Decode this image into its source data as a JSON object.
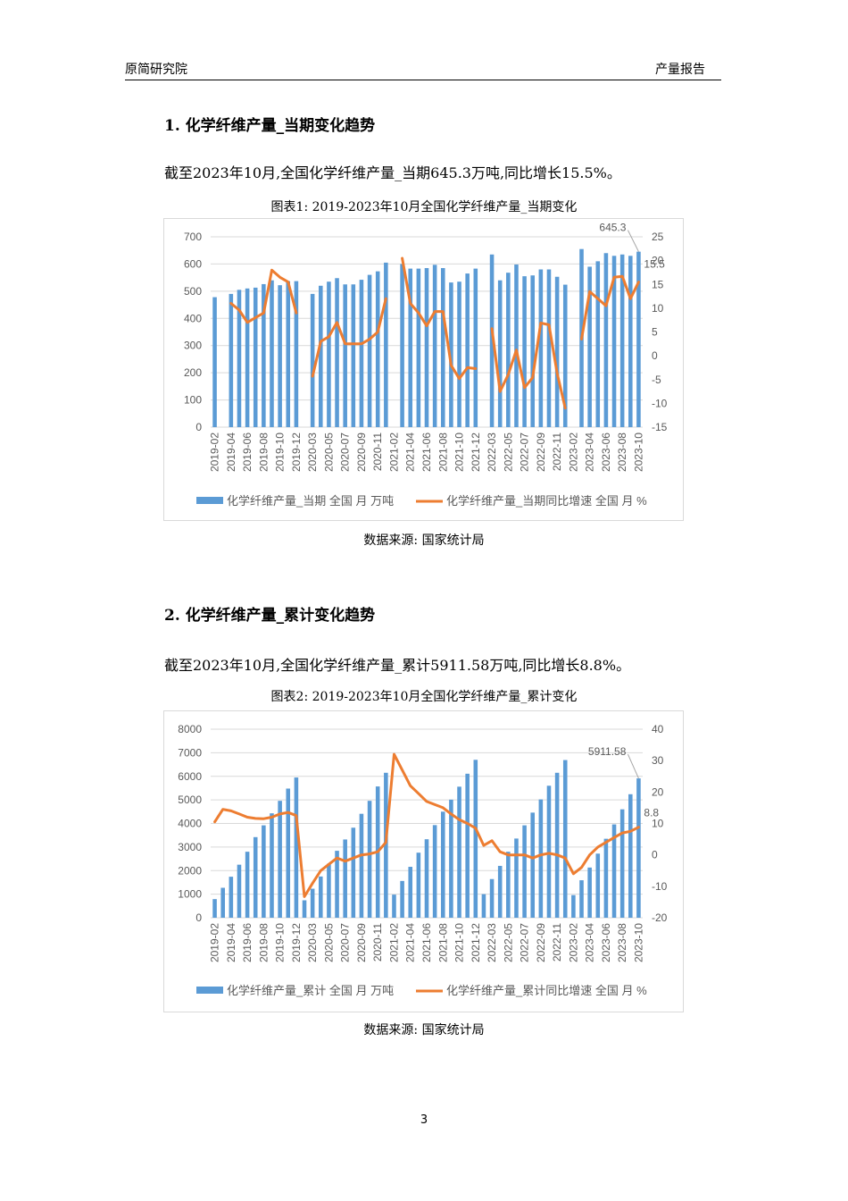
{
  "header": {
    "org": "原简研究院",
    "doc_type": "产量报告"
  },
  "section1": {
    "title": "1.  化学纤维产量_当期变化趋势",
    "summary": "截至2023年10月,全国化学纤维产量_当期645.3万吨,同比增长15.5%。",
    "caption": "图表1: 2019-2023年10月全国化学纤维产量_当期变化",
    "source": "数据来源: 国家统计局"
  },
  "section2": {
    "title": "2.  化学纤维产量_累计变化趋势",
    "summary": "截至2023年10月,全国化学纤维产量_累计5911.58万吨,同比增长8.8%。",
    "caption": "图表2: 2019-2023年10月全国化学纤维产量_累计变化",
    "source": "数据来源: 国家统计局"
  },
  "page_number": "3",
  "colors": {
    "bar": "#5b9bd5",
    "line": "#ed7d31"
  },
  "chart_data": [
    {
      "type": "bar",
      "categories": [
        "2019-02",
        "2019-03",
        "2019-04",
        "2019-05",
        "2019-06",
        "2019-07",
        "2019-08",
        "2019-09",
        "2019-10",
        "2019-11",
        "2019-12",
        "2020-02",
        "2020-03",
        "2020-04",
        "2020-05",
        "2020-06",
        "2020-07",
        "2020-08",
        "2020-09",
        "2020-10",
        "2020-11",
        "2020-12",
        "2021-02",
        "2021-03",
        "2021-04",
        "2021-05",
        "2021-06",
        "2021-07",
        "2021-08",
        "2021-09",
        "2021-10",
        "2021-11",
        "2021-12",
        "2022-02",
        "2022-03",
        "2022-04",
        "2022-05",
        "2022-06",
        "2022-07",
        "2022-08",
        "2022-09",
        "2022-10",
        "2022-11",
        "2022-12",
        "2023-02",
        "2023-03",
        "2023-04",
        "2023-05",
        "2023-06",
        "2023-07",
        "2023-08",
        "2023-09",
        "2023-10"
      ],
      "tick_labels": [
        "2019-02",
        "2019-04",
        "2019-06",
        "2019-08",
        "2019-10",
        "2019-12",
        "2020-03",
        "2020-05",
        "2020-07",
        "2020-09",
        "2020-11",
        "2021-02",
        "2021-04",
        "2021-06",
        "2021-08",
        "2021-10",
        "2021-12",
        "2022-03",
        "2022-05",
        "2022-07",
        "2022-09",
        "2022-11",
        "2023-02",
        "2023-04",
        "2023-06",
        "2023-08",
        "2023-10"
      ],
      "series": [
        {
          "name": "化学纤维产量_当期 全国 月 万吨",
          "type": "bar",
          "axis": "left",
          "values": [
            478,
            null,
            490,
            505,
            510,
            513,
            526,
            540,
            522,
            537,
            537,
            null,
            490,
            520,
            535,
            548,
            525,
            525,
            542,
            560,
            573,
            605,
            null,
            600,
            583,
            583,
            585,
            597,
            585,
            532,
            535,
            565,
            583,
            null,
            635,
            540,
            568,
            598,
            555,
            558,
            580,
            580,
            553,
            524,
            null,
            655,
            590,
            610,
            640,
            630,
            635,
            630,
            645.3
          ]
        },
        {
          "name": "化学纤维产量_当期同比增速 全国 月 %",
          "type": "line",
          "axis": "right",
          "values": [
            20,
            null,
            11,
            9.6,
            7,
            8,
            9,
            18,
            16.5,
            15.5,
            9,
            null,
            -4.3,
            3,
            4,
            7,
            2.5,
            2.5,
            2.5,
            3.5,
            5,
            12,
            null,
            20.5,
            11,
            9,
            6.3,
            9.3,
            9.3,
            -2,
            -4.8,
            -2.5,
            -2.7,
            null,
            5.7,
            -7.5,
            -4,
            1.2,
            -6.7,
            -4.6,
            6.9,
            6.5,
            -3.6,
            -11,
            null,
            3.5,
            13.5,
            12,
            10.5,
            16.5,
            16.7,
            12,
            15.5
          ]
        }
      ],
      "ylim_left": [
        0,
        700
      ],
      "yticks_left": [
        0,
        100,
        200,
        300,
        400,
        500,
        600,
        700
      ],
      "ylim_right": [
        -15,
        25
      ],
      "yticks_right": [
        -15,
        -10,
        -5,
        0,
        5,
        10,
        15,
        20,
        25
      ],
      "annotations": [
        "645.3",
        "15.5"
      ],
      "legend_position": "bottom",
      "grid": true
    },
    {
      "type": "bar",
      "categories": [
        "2019-02",
        "2019-03",
        "2019-04",
        "2019-05",
        "2019-06",
        "2019-07",
        "2019-08",
        "2019-09",
        "2019-10",
        "2019-11",
        "2019-12",
        "2020-02",
        "2020-03",
        "2020-04",
        "2020-05",
        "2020-06",
        "2020-07",
        "2020-08",
        "2020-09",
        "2020-10",
        "2020-11",
        "2020-12",
        "2021-02",
        "2021-03",
        "2021-04",
        "2021-05",
        "2021-06",
        "2021-07",
        "2021-08",
        "2021-09",
        "2021-10",
        "2021-11",
        "2021-12",
        "2022-02",
        "2022-03",
        "2022-04",
        "2022-05",
        "2022-06",
        "2022-07",
        "2022-08",
        "2022-09",
        "2022-10",
        "2022-11",
        "2022-12",
        "2023-02",
        "2023-03",
        "2023-04",
        "2023-05",
        "2023-06",
        "2023-07",
        "2023-08",
        "2023-09",
        "2023-10"
      ],
      "tick_labels": [
        "2019-02",
        "2019-04",
        "2019-06",
        "2019-08",
        "2019-10",
        "2019-12",
        "2020-03",
        "2020-05",
        "2020-07",
        "2020-09",
        "2020-11",
        "2021-02",
        "2021-04",
        "2021-06",
        "2021-08",
        "2021-10",
        "2021-12",
        "2022-03",
        "2022-05",
        "2022-07",
        "2022-09",
        "2022-11",
        "2023-02",
        "2023-04",
        "2023-06",
        "2023-08",
        "2023-10"
      ],
      "series": [
        {
          "name": "化学纤维产量_累计 全国 月 万吨",
          "type": "bar",
          "axis": "left",
          "values": [
            790,
            1270,
            1740,
            2250,
            2800,
            3420,
            3920,
            4430,
            4960,
            5480,
            5950,
            740,
            1230,
            1750,
            2290,
            2840,
            3320,
            3820,
            4410,
            4960,
            5570,
            6150,
            980,
            1560,
            2160,
            2760,
            3330,
            3930,
            4500,
            5010,
            5560,
            6110,
            6700,
            1000,
            1640,
            2200,
            2800,
            3360,
            3920,
            4460,
            5020,
            5600,
            6150,
            6690,
            960,
            1590,
            2130,
            2720,
            3350,
            3960,
            4600,
            5240,
            5911.58
          ]
        },
        {
          "name": "化学纤维产量_累计同比增速 全国 月 %",
          "type": "line",
          "axis": "right",
          "values": [
            10.5,
            14.5,
            14,
            13,
            12,
            11.6,
            11.5,
            12,
            13,
            13.5,
            12.5,
            -13.3,
            -9,
            -5,
            -3,
            -1,
            -2,
            -1,
            0,
            0.3,
            1,
            4,
            32,
            27,
            22,
            19.5,
            17,
            16,
            15,
            13,
            11.2,
            10,
            8.5,
            3,
            4.5,
            1,
            0,
            0,
            0,
            -1,
            0,
            0.5,
            0,
            -1,
            -6,
            -4,
            0,
            2.5,
            4,
            5.5,
            7,
            7.5,
            8.8
          ]
        }
      ],
      "ylim_left": [
        0,
        8000
      ],
      "yticks_left": [
        0,
        1000,
        2000,
        3000,
        4000,
        5000,
        6000,
        7000,
        8000
      ],
      "ylim_right": [
        -20,
        40
      ],
      "yticks_right": [
        -20,
        -10,
        0,
        10,
        20,
        30,
        40
      ],
      "annotations": [
        "5911.58",
        "8.8"
      ],
      "legend_position": "bottom",
      "grid": true
    }
  ]
}
